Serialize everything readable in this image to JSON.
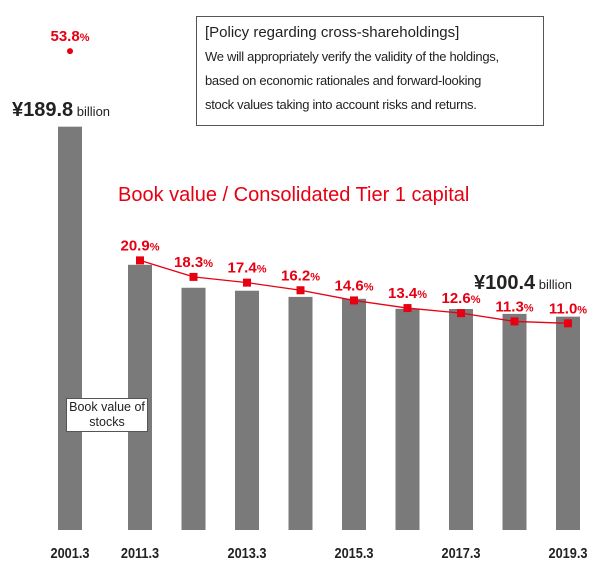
{
  "chart_data": {
    "type": "bar-line",
    "categories": [
      "2001.3",
      "2011.3",
      null,
      "2013.3",
      null,
      "2015.3",
      null,
      "2017.3",
      null,
      "2019.3"
    ],
    "series": [
      {
        "name": "Book value of stocks",
        "type": "bar",
        "color": "#7a7a7a",
        "values": [
          189.8,
          124.8,
          114,
          112.6,
          109.7,
          108.8,
          104.1,
          104,
          101.7,
          100.4
        ],
        "value_labels": [
          "¥189.8 billion",
          null,
          null,
          null,
          null,
          null,
          null,
          null,
          null,
          "¥100.4 billion"
        ]
      },
      {
        "name": "Book value / Consolidated Tier 1 capital",
        "type": "line",
        "axis": "y2",
        "color": "#e60012",
        "values": [
          53.8,
          20.9,
          18.3,
          17.4,
          16.2,
          14.6,
          13.4,
          12.6,
          11.3,
          11.0
        ],
        "value_labels": [
          "53.8%",
          "20.9%",
          "18.3%",
          "17.4%",
          "16.2%",
          "14.6%",
          "13.4%",
          "12.6%",
          "11.3%",
          "11.0%"
        ]
      }
    ],
    "ylim": [
      0,
      240
    ],
    "y2lim": [
      -21.5,
      58.7
    ],
    "annotation": {
      "title": "[Policy regarding cross-shareholdings]",
      "lines": [
        "We will appropriately verify the validity of the holdings,",
        "based on economic rationales and forward-looking",
        "stock values taking into account risks and returns."
      ]
    }
  }
}
